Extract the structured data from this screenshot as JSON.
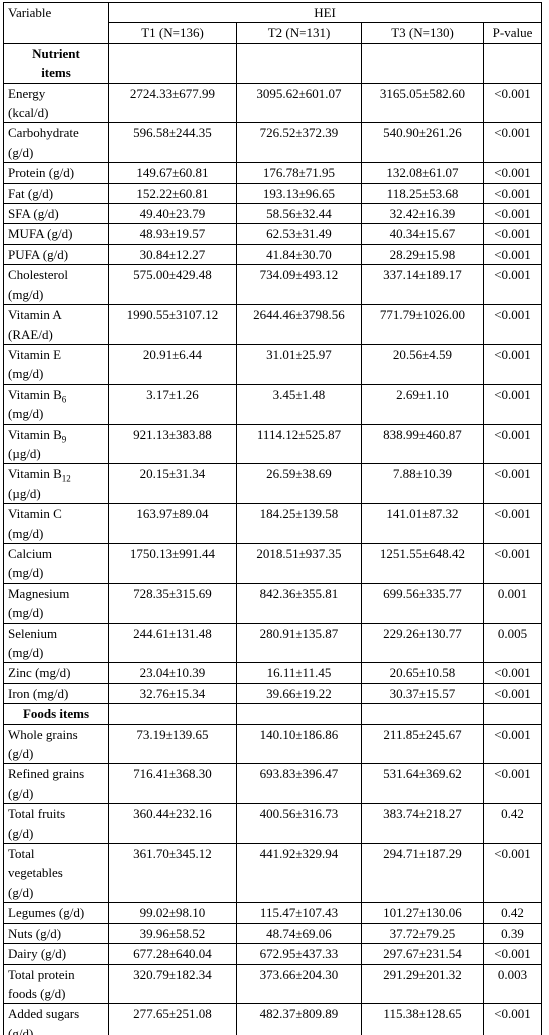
{
  "table": {
    "header": {
      "variable": "Variable",
      "group": "HEI",
      "columns": [
        "T1 (N=136)",
        "T2 (N=131)",
        "T3 (N=130)",
        "P-value"
      ]
    },
    "sections": [
      {
        "title": [
          "Nutrient",
          "items"
        ],
        "rows": [
          {
            "label": [
              "Energy",
              "(kcal/d)"
            ],
            "values": [
              "2724.33±677.99",
              "3095.62±601.07",
              "3165.05±582.60",
              "<0.001"
            ]
          },
          {
            "label": [
              "Carbohydrate",
              "(g/d)"
            ],
            "values": [
              "596.58±244.35",
              "726.52±372.39",
              "540.90±261.26",
              "<0.001"
            ]
          },
          {
            "label": [
              "Protein (g/d)"
            ],
            "values": [
              "149.67±60.81",
              "176.78±71.95",
              "132.08±61.07",
              "<0.001"
            ]
          },
          {
            "label": [
              "Fat (g/d)"
            ],
            "values": [
              "152.22±60.81",
              "193.13±96.65",
              "118.25±53.68",
              "<0.001"
            ]
          },
          {
            "label": [
              "SFA (g/d)"
            ],
            "values": [
              "49.40±23.79",
              "58.56±32.44",
              "32.42±16.39",
              "<0.001"
            ]
          },
          {
            "label": [
              "MUFA (g/d)"
            ],
            "values": [
              "48.93±19.57",
              "62.53±31.49",
              "40.34±15.67",
              "<0.001"
            ]
          },
          {
            "label": [
              "PUFA (g/d)"
            ],
            "values": [
              "30.84±12.27",
              "41.84±30.70",
              "28.29±15.98",
              "<0.001"
            ]
          },
          {
            "label": [
              "Cholesterol",
              "(mg/d)"
            ],
            "values": [
              "575.00±429.48",
              "734.09±493.12",
              "337.14±189.17",
              "<0.001"
            ]
          },
          {
            "label": [
              "Vitamin A",
              "(RAE/d)"
            ],
            "values": [
              "1990.55±3107.12",
              "2644.46±3798.56",
              "771.79±1026.00",
              "<0.001"
            ]
          },
          {
            "label": [
              "Vitamin E",
              "(mg/d)"
            ],
            "values": [
              "20.91±6.44",
              "31.01±25.97",
              "20.56±4.59",
              "<0.001"
            ]
          },
          {
            "label": [
              "Vitamin B",
              "(mg/d)"
            ],
            "sub": "6",
            "values": [
              "3.17±1.26",
              "3.45±1.48",
              "2.69±1.10",
              "<0.001"
            ]
          },
          {
            "label": [
              "Vitamin B",
              "(µg/d)"
            ],
            "sub": "9",
            "values": [
              "921.13±383.88",
              "1114.12±525.87",
              "838.99±460.87",
              "<0.001"
            ]
          },
          {
            "label": [
              "Vitamin B",
              "(µg/d)"
            ],
            "sub": "12",
            "values": [
              "20.15±31.34",
              "26.59±38.69",
              "7.88±10.39",
              "<0.001"
            ]
          },
          {
            "label": [
              "Vitamin C",
              "(mg/d)"
            ],
            "values": [
              "163.97±89.04",
              "184.25±139.58",
              "141.01±87.32",
              "<0.001"
            ]
          },
          {
            "label": [
              "Calcium",
              "(mg/d)"
            ],
            "values": [
              "1750.13±991.44",
              "2018.51±937.35",
              "1251.55±648.42",
              "<0.001"
            ]
          },
          {
            "label": [
              "Magnesium",
              "(mg/d)"
            ],
            "values": [
              "728.35±315.69",
              "842.36±355.81",
              "699.56±335.77",
              "0.001"
            ]
          },
          {
            "label": [
              "Selenium",
              "(mg/d)"
            ],
            "values": [
              "244.61±131.48",
              "280.91±135.87",
              "229.26±130.77",
              "0.005"
            ]
          },
          {
            "label": [
              "Zinc (mg/d)"
            ],
            "values": [
              "23.04±10.39",
              "16.11±11.45",
              "20.65±10.58",
              "<0.001"
            ]
          },
          {
            "label": [
              "Iron (mg/d)"
            ],
            "values": [
              "32.76±15.34",
              "39.66±19.22",
              "30.37±15.57",
              "<0.001"
            ]
          }
        ]
      },
      {
        "title": [
          "Foods items"
        ],
        "rows": [
          {
            "label": [
              "Whole grains",
              "(g/d)"
            ],
            "values": [
              "73.19±139.65",
              "140.10±186.86",
              "211.85±245.67",
              "<0.001"
            ]
          },
          {
            "label": [
              "Refined grains",
              "(g/d)"
            ],
            "values": [
              "716.41±368.30",
              "693.83±396.47",
              "531.64±369.62",
              "<0.001"
            ]
          },
          {
            "label": [
              "Total fruits",
              "(g/d)"
            ],
            "values": [
              "360.44±232.16",
              "400.56±316.73",
              "383.74±218.27",
              "0.42"
            ]
          },
          {
            "label": [
              "Total",
              "vegetables",
              "(g/d)"
            ],
            "values": [
              "361.70±345.12",
              "441.92±329.94",
              "294.71±187.29",
              "<0.001"
            ]
          },
          {
            "label": [
              "Legumes (g/d)"
            ],
            "values": [
              "99.02±98.10",
              "115.47±107.43",
              "101.27±130.06",
              "0.42"
            ]
          },
          {
            "label": [
              "Nuts (g/d)"
            ],
            "values": [
              "39.96±58.52",
              "48.74±69.06",
              "37.72±79.25",
              "0.39"
            ]
          },
          {
            "label": [
              "Dairy (g/d)"
            ],
            "values": [
              "677.28±640.04",
              "672.95±437.33",
              "297.67±231.54",
              "<0.001"
            ]
          },
          {
            "label": [
              "Total protein",
              "foods (g/d)"
            ],
            "values": [
              "320.79±182.34",
              "373.66±204.30",
              "291.29±201.32",
              "0.003"
            ]
          },
          {
            "label": [
              "Added sugars",
              "(g/d)"
            ],
            "values": [
              "277.65±251.08",
              "482.37±809.89",
              "115.38±128.65",
              "<0.001"
            ]
          }
        ]
      }
    ]
  }
}
